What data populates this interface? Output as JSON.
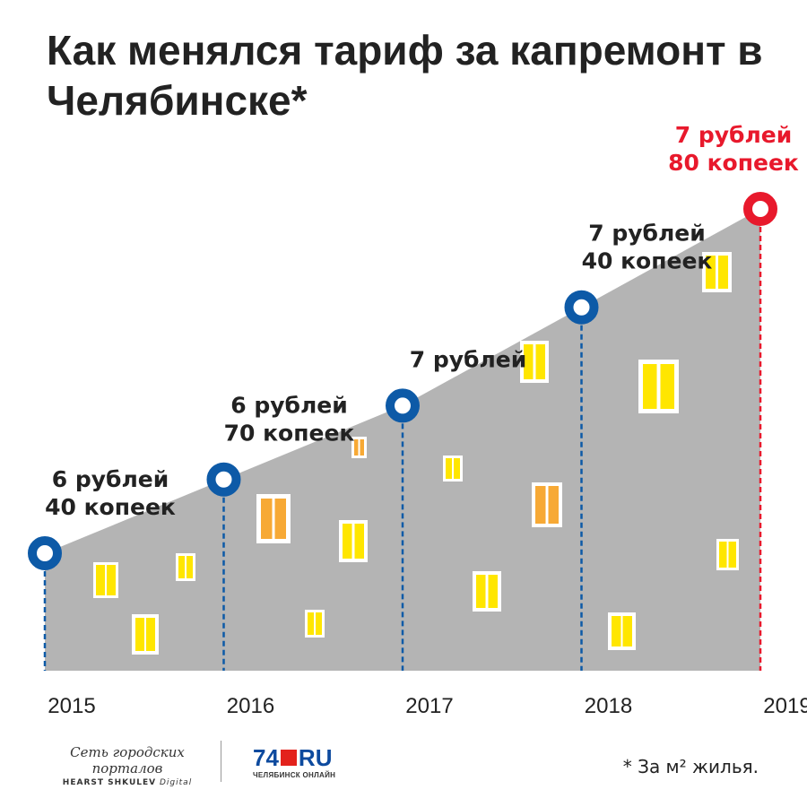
{
  "title": "Как менялся тариф за капремонт в Челябинске*",
  "footnote": "* За м² жилья.",
  "logos": {
    "network": "Сеть городских порталов",
    "network_sub_bold": "HEARST SHKULEV",
    "network_sub": "Digital",
    "brand_left": "74",
    "brand_right": "RU",
    "brand_city": "ЧЕЛЯБИНСК ОНЛАЙН"
  },
  "colors": {
    "area": "#b4b4b4",
    "marker": "#0d5aa7",
    "marker_highlight": "#e8192c",
    "label": "#222222",
    "label_highlight": "#e8192c",
    "window_yellow": "#ffe600",
    "window_orange": "#f7a935"
  },
  "chart_data": {
    "type": "area",
    "unit": "руб. за м²",
    "x": [
      "2015",
      "2016",
      "2017",
      "2018",
      "2019"
    ],
    "values": [
      6.4,
      6.7,
      7.0,
      7.4,
      7.8
    ],
    "point_labels": [
      [
        "6 рублей",
        "40 копеек"
      ],
      [
        "6 рублей",
        "70 копеек"
      ],
      [
        "7 рублей"
      ],
      [
        "7 рублей",
        "40 копеек"
      ],
      [
        "7 рублей",
        "80 копеек"
      ]
    ],
    "highlight_index": 4,
    "grid": false,
    "legend": "none"
  }
}
